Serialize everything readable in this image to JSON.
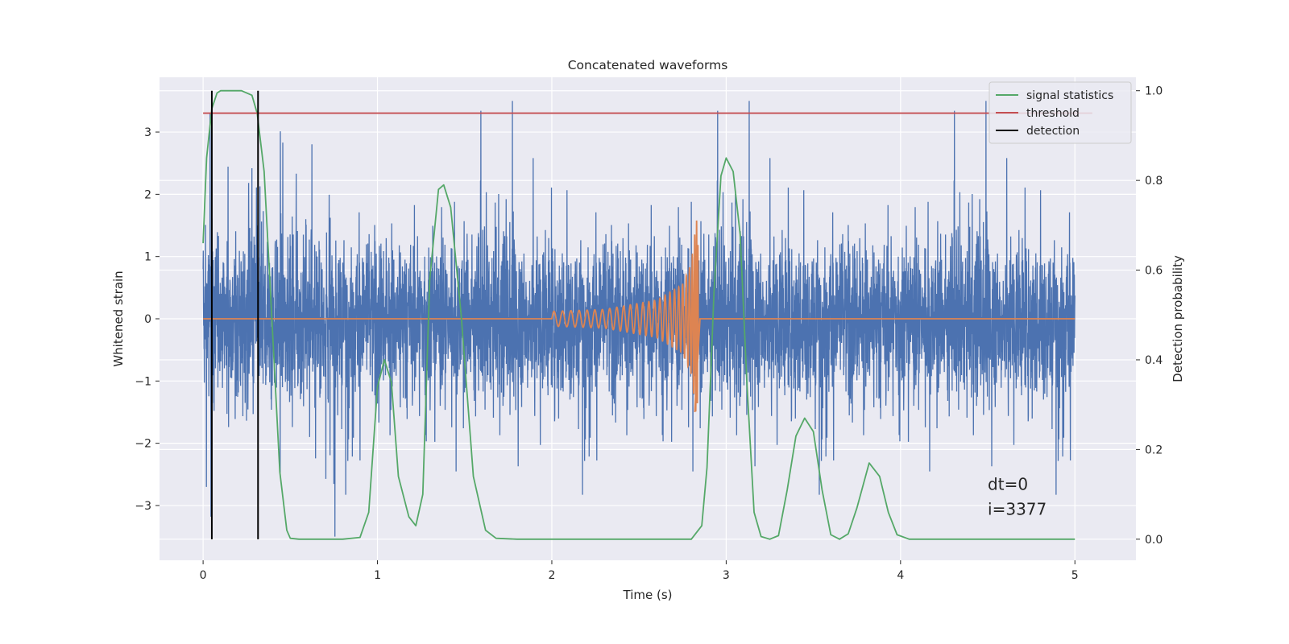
{
  "chart_data": {
    "type": "line",
    "title": "Concatenated waveforms",
    "xlabel": "Time (s)",
    "ylabel": "Whitened strain",
    "y2label": "Detection probability",
    "xlim": [
      -0.25,
      5.35
    ],
    "ylim": [
      -3.88,
      3.88
    ],
    "y2lim": [
      -0.047,
      1.03
    ],
    "xticks": [
      0,
      1,
      2,
      3,
      4,
      5
    ],
    "yticks": [
      -3,
      -2,
      -1,
      0,
      1,
      2,
      3
    ],
    "y2ticks": [
      0.0,
      0.2,
      0.4,
      0.6,
      0.8,
      1.0
    ],
    "xtick_labels": [
      "0",
      "1",
      "2",
      "3",
      "4",
      "5"
    ],
    "ytick_labels": [
      "−3",
      "−2",
      "−1",
      "0",
      "1",
      "2",
      "3"
    ],
    "y2tick_labels": [
      "0.0",
      "0.2",
      "0.4",
      "0.6",
      "0.8",
      "1.0"
    ],
    "grid": true,
    "legend_position": "top-right",
    "legend": [
      "signal statistics",
      "threshold",
      "detection"
    ],
    "series": [
      {
        "name": "whitened strain (noise)",
        "axis": "left",
        "color": "#4c72b0",
        "description": "dense noise trace from 0 to 5 s, mostly within about -1.5 to 1.5 with spikes to about +/-3.5",
        "x_range": [
          0,
          5
        ],
        "amplitude_core": 1.2,
        "max_spike": 3.5
      },
      {
        "name": "injected waveform",
        "axis": "left",
        "color": "#dd8452",
        "x": [
          0,
          2.0,
          2.3,
          2.6,
          2.75,
          2.8,
          2.83,
          2.86,
          5.0
        ],
        "amplitude": [
          0,
          0.12,
          0.15,
          0.3,
          0.55,
          0.9,
          1.6,
          0.05,
          0
        ]
      },
      {
        "name": "signal statistics",
        "axis": "right",
        "color": "#55a868",
        "x": [
          0,
          0.02,
          0.05,
          0.08,
          0.1,
          0.15,
          0.22,
          0.28,
          0.31,
          0.35,
          0.4,
          0.44,
          0.48,
          0.5,
          0.55,
          0.8,
          0.9,
          0.95,
          1.0,
          1.04,
          1.08,
          1.12,
          1.18,
          1.22,
          1.26,
          1.3,
          1.35,
          1.38,
          1.42,
          1.48,
          1.55,
          1.62,
          1.68,
          1.8,
          2.5,
          2.8,
          2.86,
          2.89,
          2.93,
          2.97,
          3.0,
          3.04,
          3.08,
          3.12,
          3.16,
          3.2,
          3.25,
          3.3,
          3.35,
          3.4,
          3.45,
          3.5,
          3.55,
          3.6,
          3.65,
          3.7,
          3.75,
          3.82,
          3.88,
          3.93,
          3.98,
          4.05,
          5.0
        ],
        "values": [
          0.66,
          0.85,
          0.96,
          0.995,
          1.0,
          1.0,
          1.0,
          0.99,
          0.95,
          0.82,
          0.45,
          0.15,
          0.02,
          0.002,
          0.0,
          0.0,
          0.004,
          0.06,
          0.34,
          0.4,
          0.35,
          0.14,
          0.05,
          0.03,
          0.1,
          0.58,
          0.78,
          0.79,
          0.74,
          0.5,
          0.14,
          0.02,
          0.002,
          0.0,
          0.0,
          0.0,
          0.03,
          0.16,
          0.55,
          0.81,
          0.85,
          0.82,
          0.68,
          0.34,
          0.06,
          0.006,
          0.0,
          0.008,
          0.11,
          0.23,
          0.27,
          0.24,
          0.11,
          0.01,
          0.0,
          0.012,
          0.07,
          0.17,
          0.14,
          0.06,
          0.01,
          0.0,
          0.0
        ]
      },
      {
        "name": "threshold",
        "axis": "right",
        "color": "#c44e52",
        "x": [
          0,
          5.1
        ],
        "values": [
          0.95,
          0.95
        ]
      },
      {
        "name": "detection",
        "axis": "right",
        "color": "#000000",
        "type": "vlines",
        "x": [
          0.05,
          0.315
        ],
        "ymin": 0.0,
        "ymax": 1.0
      }
    ],
    "annotations": [
      "dt=0",
      "i=3377"
    ],
    "annotation_position": {
      "x": 4.5,
      "y_line1": -2.75,
      "y_line2": -3.15
    }
  },
  "colors": {
    "plot_background": "#eaeaf2",
    "grid": "#ffffff",
    "noise": "#4c72b0",
    "waveform": "#dd8452",
    "statistics": "#55a868",
    "threshold": "#c44e52",
    "detection": "#000000"
  }
}
